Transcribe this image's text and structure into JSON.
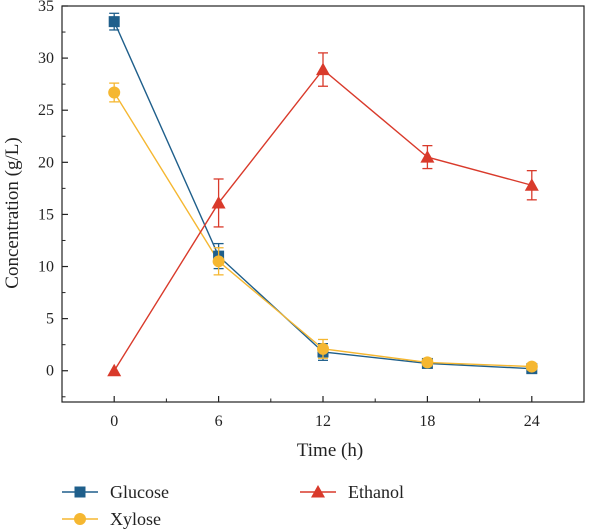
{
  "chart_data": {
    "type": "line",
    "xlabel": "Time (h)",
    "ylabel": "Concentration (g/L)",
    "x": [
      0,
      6,
      12,
      18,
      24
    ],
    "xlim": [
      -3,
      27
    ],
    "ylim": [
      -3,
      35
    ],
    "xticks": [
      "0",
      "6",
      "12",
      "18",
      "24"
    ],
    "yticks": [
      "0",
      "5",
      "10",
      "15",
      "20",
      "25",
      "30",
      "35"
    ],
    "grid": false,
    "legend_position": "bottom",
    "series": [
      {
        "name": "Glucose",
        "color": "#1f5f8b",
        "marker": "square",
        "values": [
          33.5,
          11.0,
          1.8,
          0.7,
          0.2
        ],
        "errors": [
          0.8,
          1.2,
          0.8,
          0.3,
          0.3
        ]
      },
      {
        "name": "Xylose",
        "color": "#f5b731",
        "marker": "circle",
        "values": [
          26.7,
          10.5,
          2.1,
          0.8,
          0.4
        ],
        "errors": [
          0.9,
          1.3,
          0.9,
          0.3,
          0.3
        ]
      },
      {
        "name": "Ethanol",
        "color": "#d93a2b",
        "marker": "triangle",
        "values": [
          0.0,
          16.1,
          28.9,
          20.5,
          17.8
        ],
        "errors": [
          0.0,
          2.3,
          1.6,
          1.1,
          1.4
        ]
      }
    ]
  }
}
